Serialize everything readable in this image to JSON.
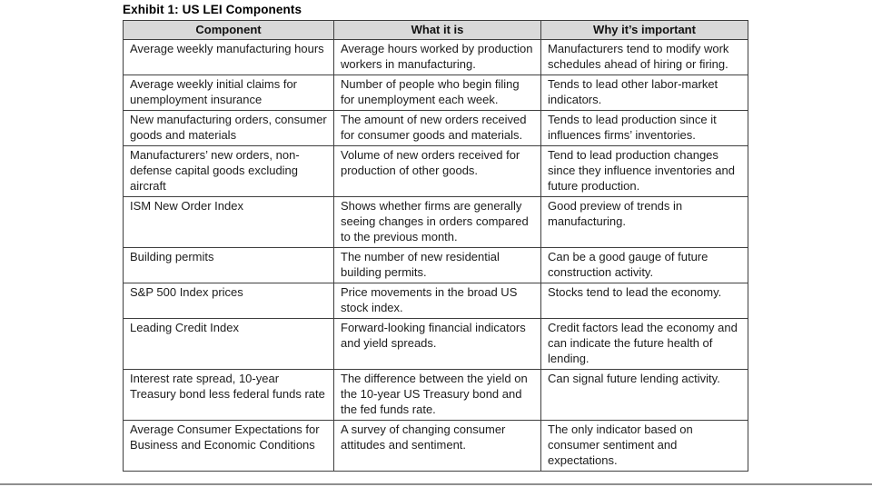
{
  "title": "Exhibit 1: US LEI Components",
  "table": {
    "headers": [
      "Component",
      "What it is",
      "Why it’s important"
    ],
    "header_bg": "#d9d9d9",
    "border_color": "#3f3f3f",
    "rows": [
      {
        "component": "Average weekly manufacturing hours",
        "what": "Average hours worked by production workers in manufacturing.",
        "why": "Manufacturers tend to modify work schedules ahead of hiring or firing."
      },
      {
        "component": "Average weekly initial claims for unemployment insurance",
        "what": "Number of people who begin filing for unemployment each week.",
        "why": "Tends to lead other labor-market indicators."
      },
      {
        "component": "New manufacturing orders, consumer goods and materials",
        "what": "The amount of new orders received for consumer goods and materials.",
        "why": "Tends to lead production since it influences firms’ inventories."
      },
      {
        "component": "Manufacturers’ new orders, non-defense capital goods excluding aircraft",
        "what": "Volume of new orders received for production of other goods.",
        "why": "Tend to lead production changes since they influence inventories and future production."
      },
      {
        "component": "ISM New Order Index",
        "what": "Shows whether firms are generally seeing changes in orders compared to the previous month.",
        "why": "Good preview of trends in manufacturing."
      },
      {
        "component": "Building permits",
        "what": "The number of new residential building permits.",
        "why": "Can be a good gauge of future construction activity."
      },
      {
        "component": "S&P 500 Index prices",
        "what": "Price movements in the broad US stock index.",
        "why": "Stocks tend to lead the economy."
      },
      {
        "component": "Leading Credit Index",
        "what": "Forward-looking financial indicators and yield spreads.",
        "why": "Credit factors lead the economy and can indicate the future health of lending."
      },
      {
        "component": "Interest rate spread, 10-year Treasury bond less federal funds rate",
        "what": "The difference between the yield on the 10-year US Treasury bond and the fed funds rate.",
        "why": "Can signal future lending activity."
      },
      {
        "component": "Average Consumer Expectations for Business and Economic Conditions",
        "what": "A survey of changing consumer attitudes and sentiment.",
        "why": "The only indicator based on consumer sentiment and expectations."
      }
    ]
  }
}
